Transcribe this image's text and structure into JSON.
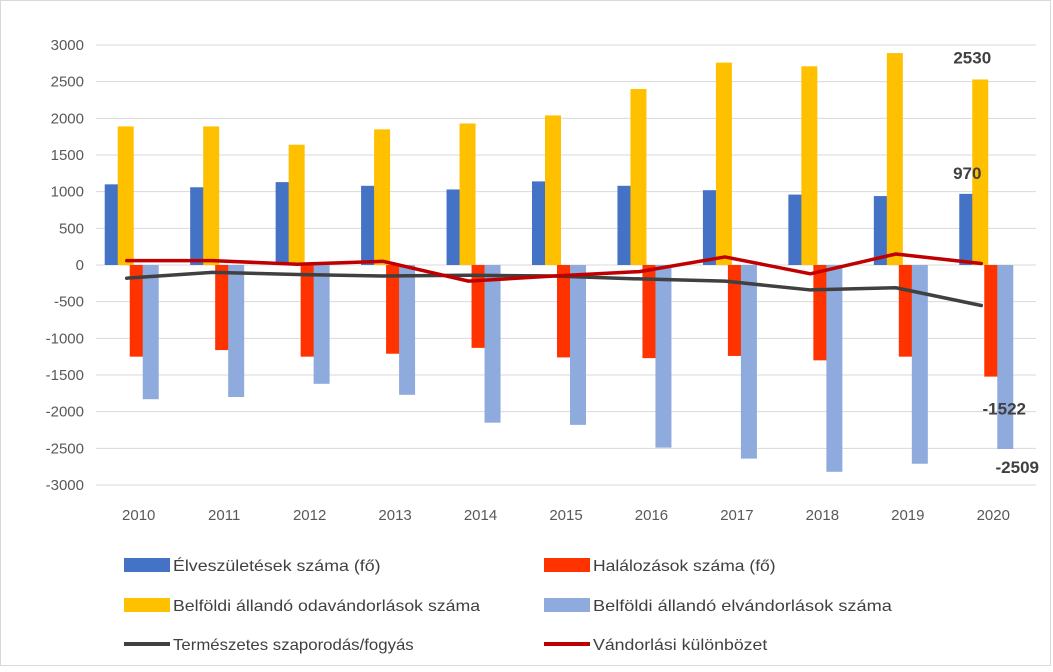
{
  "chart_data": {
    "type": "bar",
    "categories": [
      "2010",
      "2011",
      "2012",
      "2013",
      "2014",
      "2015",
      "2016",
      "2017",
      "2018",
      "2019",
      "2020"
    ],
    "ylim": [
      -3000,
      3000
    ],
    "yticks": [
      3000,
      2500,
      2000,
      1500,
      1000,
      500,
      0,
      -500,
      -1000,
      -1500,
      -2000,
      -2500,
      -3000
    ],
    "grid": true,
    "legend_position": "bottom",
    "bar_series": [
      {
        "name": "Élveszületések száma (fő)",
        "color": "#4472c4",
        "values": [
          1100,
          1060,
          1130,
          1080,
          1030,
          1140,
          1080,
          1020,
          960,
          940,
          970
        ]
      },
      {
        "name": "Halálozások száma (fő)",
        "color": "#ff3300",
        "values": [
          -1250,
          -1160,
          -1250,
          -1210,
          -1130,
          -1260,
          -1270,
          -1240,
          -1300,
          -1250,
          -1522
        ]
      },
      {
        "name": "Belföldi állandó odavándorlások száma",
        "color": "#ffc000",
        "values": [
          1890,
          1890,
          1640,
          1850,
          1930,
          2040,
          2400,
          2760,
          2710,
          2890,
          2530
        ]
      },
      {
        "name": "Belföldi állandó elvándorlások száma",
        "color": "#8faadc",
        "values": [
          -1830,
          -1800,
          -1620,
          -1770,
          -2150,
          -2180,
          -2490,
          -2640,
          -2820,
          -2710,
          -2509
        ]
      }
    ],
    "line_series": [
      {
        "name": "Természetes szaporodás/fogyás",
        "color": "#404040",
        "values": [
          -180,
          -100,
          -130,
          -150,
          -140,
          -150,
          -190,
          -220,
          -340,
          -310,
          -552
        ]
      },
      {
        "name": "Vándorlási különbözet",
        "color": "#c00000",
        "values": [
          60,
          60,
          10,
          50,
          -220,
          -150,
          -90,
          110,
          -120,
          150,
          21
        ]
      }
    ],
    "data_labels": [
      {
        "series": 0,
        "index": 10,
        "text": "970"
      },
      {
        "series": 1,
        "index": 10,
        "text": "-1522"
      },
      {
        "series": 2,
        "index": 10,
        "text": "2530"
      },
      {
        "series": 3,
        "index": 10,
        "text": "-2509"
      }
    ]
  }
}
